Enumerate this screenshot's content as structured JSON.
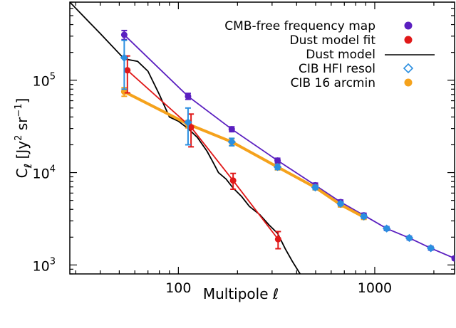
{
  "chart_data": {
    "type": "line",
    "xscale": "log",
    "yscale": "log",
    "xlim": [
      28,
      2550
    ],
    "ylim": [
      800,
      700000
    ],
    "xlabel": "Multipole ℓ",
    "ylabel_main": "C",
    "ylabel_sub": "ℓ",
    "ylabel_units": "[Jy",
    "ylabel_units2": " sr",
    "ylabel_units_sup1": "2",
    "ylabel_units_sup2": "−1",
    "ylabel_units_end": "]",
    "xticks": [
      {
        "value": 100,
        "label": "100"
      },
      {
        "value": 1000,
        "label": "1000"
      }
    ],
    "yticks": [
      {
        "value": 1000,
        "base": "10",
        "exp": "3"
      },
      {
        "value": 10000,
        "base": "10",
        "exp": "4"
      },
      {
        "value": 100000,
        "base": "10",
        "exp": "5"
      }
    ],
    "legend_position": "top-right",
    "series": [
      {
        "name": "CMB-free frequency map",
        "color": "#5a1fc0",
        "marker": "circle",
        "line": true,
        "x": [
          53,
          112,
          187,
          320,
          498,
          670,
          880,
          1150,
          1500,
          1930,
          2550
        ],
        "y": [
          310000,
          67000,
          29500,
          13500,
          7300,
          4800,
          3450,
          2480,
          1960,
          1520,
          1180
        ],
        "yerr": [
          35000,
          5000,
          1800,
          800,
          400,
          250,
          180,
          120,
          90,
          70,
          50
        ]
      },
      {
        "name": "Dust model fit",
        "color": "#e01818",
        "marker": "circle",
        "line": true,
        "x": [
          55,
          116,
          190,
          322
        ],
        "y": [
          128000,
          31000,
          8200,
          1900
        ],
        "yerr": [
          55000,
          12000,
          1600,
          400
        ]
      },
      {
        "name": "Dust model",
        "color": "#000000",
        "marker": "none",
        "line": true,
        "x": [
          28,
          40,
          53,
          62,
          70,
          80,
          90,
          100,
          112,
          125,
          140,
          150,
          160,
          175,
          190,
          210,
          230,
          260,
          290,
          320,
          350,
          380,
          420
        ],
        "y": [
          700000,
          320000,
          170000,
          160000,
          125000,
          70000,
          40000,
          36000,
          30000,
          24000,
          17000,
          13000,
          10000,
          8500,
          6800,
          5500,
          4300,
          3500,
          2700,
          2200,
          1500,
          1100,
          780
        ]
      },
      {
        "name": "CIB HFI resol",
        "color": "#2b8fe0",
        "marker": "diamond-open",
        "line": false,
        "x": [
          53,
          112,
          187,
          320,
          498,
          670,
          880,
          1150,
          1500,
          1930
        ],
        "y": [
          175000,
          35000,
          21500,
          11500,
          6900,
          4600,
          3350,
          2480,
          1960,
          1520
        ],
        "yerr": [
          95000,
          15000,
          2000,
          700,
          350,
          220,
          160,
          110,
          80,
          60
        ]
      },
      {
        "name": "CIB 16 arcmin",
        "color": "#f5a21c",
        "marker": "circle",
        "line": true,
        "x": [
          53,
          112,
          187,
          320,
          498,
          670,
          880
        ],
        "y": [
          75000,
          33500,
          21500,
          11500,
          6900,
          4500,
          3300
        ],
        "yerr": [
          8000,
          3000,
          1800,
          800,
          400,
          250,
          180
        ]
      }
    ]
  }
}
